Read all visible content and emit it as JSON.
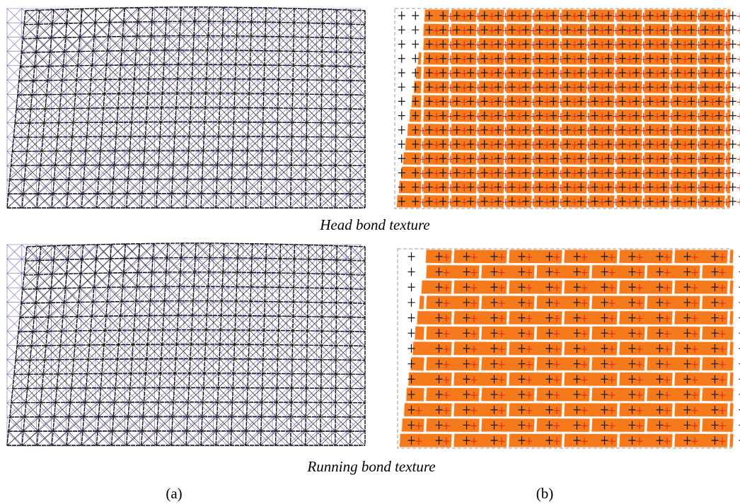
{
  "panels": [
    {
      "caption": "Head bond texture"
    },
    {
      "caption": "Running bond texture"
    }
  ],
  "labels": [
    "(a)",
    "(b)"
  ]
}
